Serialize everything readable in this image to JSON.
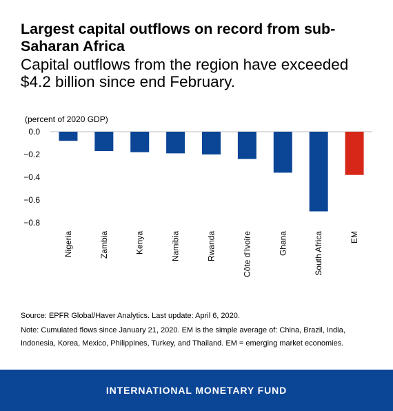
{
  "header": {
    "title": "Largest capital outflows on record from sub-Saharan Africa",
    "subtitle": "Capital outflows from the region have exceeded $4.2 billion since end February."
  },
  "chart_data": {
    "type": "bar",
    "unit_label": "(percent of 2020 GDP)",
    "categories": [
      "Nigeria",
      "Zambia",
      "Kenya",
      "Namibia",
      "Rwanda",
      "Côte d'Ivoire",
      "Ghana",
      "South Africa",
      "EM"
    ],
    "values": [
      -0.08,
      -0.17,
      -0.18,
      -0.19,
      -0.2,
      -0.24,
      -0.36,
      -0.7,
      -0.38
    ],
    "colors": [
      "#0b4596",
      "#0b4596",
      "#0b4596",
      "#0b4596",
      "#0b4596",
      "#0b4596",
      "#0b4596",
      "#0b4596",
      "#d62718"
    ],
    "yticks": [
      "0.0",
      "−0.2",
      "−0.4",
      "−0.6",
      "−0.8"
    ],
    "ylim": [
      -0.8,
      0
    ],
    "grid": false,
    "xlabel": "",
    "ylabel": ""
  },
  "footnotes": {
    "source": "Source: EPFR Global/Haver Analytics. Last update: April 6, 2020.",
    "note": "Note: Cumulated flows since January 21, 2020. EM is the simple average of: China, Brazil, India, Indonesia, Korea, Mexico, Philippines, Turkey, and Thailand. EM = emerging market economies."
  },
  "footer": {
    "brand": "INTERNATIONAL MONETARY FUND",
    "background": "#0b4596"
  }
}
